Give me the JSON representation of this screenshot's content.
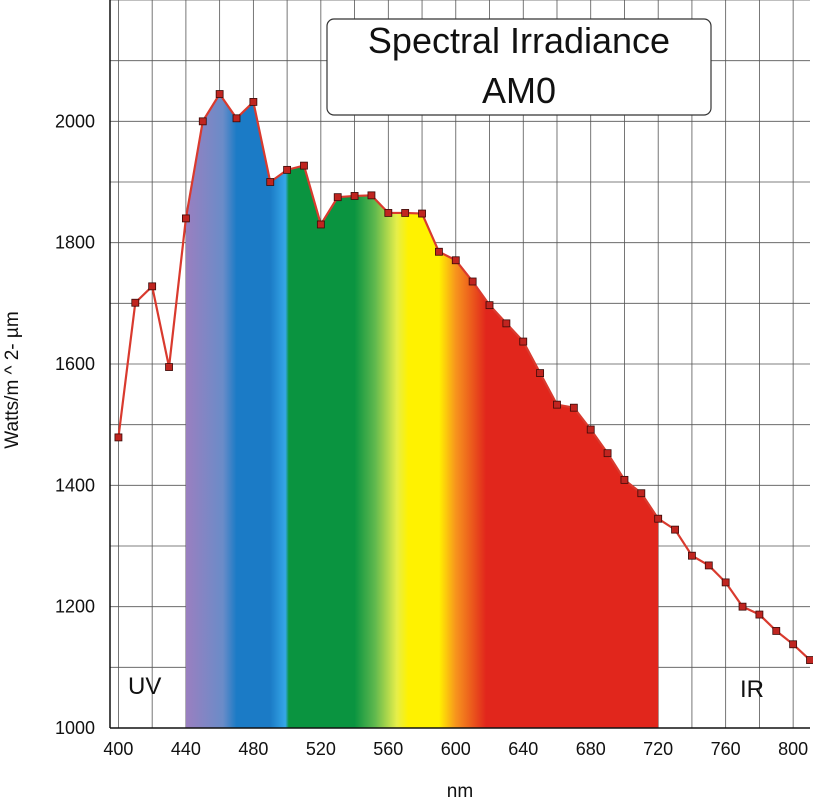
{
  "chart_data": {
    "type": "line",
    "title": [
      "Spectral Irradiance",
      "AM0"
    ],
    "xlabel": "nm",
    "ylabel": "Watts/m ^ 2- µm",
    "xlim": [
      395,
      810
    ],
    "ylim": [
      1000,
      2200
    ],
    "x_ticks": [
      400,
      440,
      480,
      520,
      560,
      600,
      640,
      680,
      720,
      760,
      800
    ],
    "y_ticks": [
      1000,
      1200,
      1400,
      1600,
      1800,
      2000
    ],
    "grid": true,
    "region_labels": {
      "uv": "UV",
      "ir": "IR"
    },
    "series": [
      {
        "x": [
          400,
          410,
          420,
          430,
          440,
          450,
          460,
          470,
          480,
          490,
          500,
          510,
          520,
          530,
          540,
          550,
          560,
          570,
          580,
          590,
          600,
          610,
          620,
          630,
          640,
          650,
          660,
          670,
          680,
          690,
          700,
          710,
          720,
          730,
          740,
          750,
          760,
          770,
          780,
          790,
          800,
          810
        ],
        "y": [
          1479,
          1701,
          1728,
          1595,
          1840,
          2000,
          2045,
          2005,
          2032,
          1900,
          1920,
          1927,
          1830,
          1875,
          1877,
          1878,
          1849,
          1849,
          1848,
          1785,
          1771,
          1736,
          1697,
          1667,
          1637,
          1585,
          1533,
          1528,
          1492,
          1453,
          1409,
          1387,
          1345,
          1327,
          1284,
          1268,
          1240,
          1200,
          1187,
          1160,
          1138,
          1112
        ]
      }
    ],
    "visible_spectrum": {
      "from": 440,
      "to": 720
    },
    "colors": {
      "line": "#d93a2e",
      "marker": "#c02520",
      "grid": "#555555",
      "violet": "#9a7fc0",
      "blue": "#1b7bc6",
      "green": "#0a9440",
      "yellow": "#fff200",
      "orange": "#f7941d",
      "red": "#e1261c"
    }
  }
}
